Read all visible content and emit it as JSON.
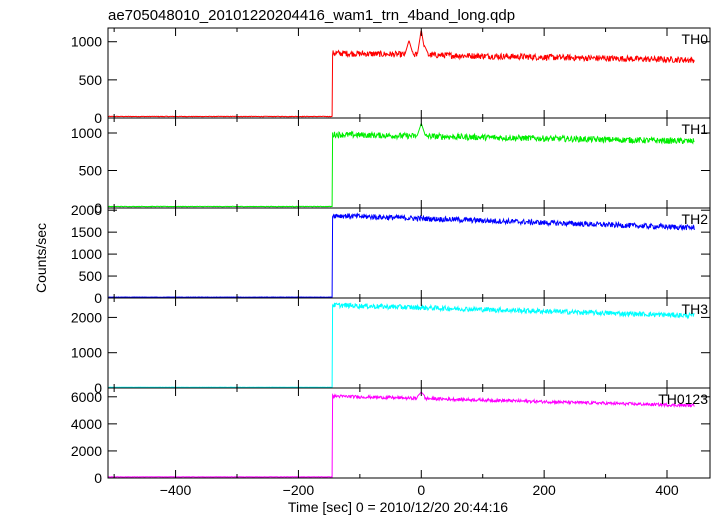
{
  "chart_data": {
    "type": "line",
    "title": "ae705048010_20101220204416_wam1_trn_4band_long.qdp",
    "xlabel": "Time [sec] 0 = 2010/12/20 20:44:16",
    "ylabel": "Counts/sec",
    "xlim": [
      -510,
      470
    ],
    "xticks": [
      -400,
      -200,
      0,
      200,
      400
    ],
    "xtick_labels": [
      "−400",
      "−200",
      "0",
      "200",
      "400"
    ],
    "panels": [
      {
        "name": "TH0",
        "color": "#ff0000",
        "ylim": [
          0,
          1180
        ],
        "yticks": [
          0,
          500,
          1000
        ],
        "ytick_labels": [
          "0",
          "500",
          "1000"
        ],
        "pre_level": 20,
        "post_start": 850,
        "post_end": 760,
        "noise": 40,
        "spikes": [
          [
            -20,
            1020
          ],
          [
            0,
            1160
          ],
          [
            5,
            950
          ]
        ]
      },
      {
        "name": "TH1",
        "color": "#00ee00",
        "ylim": [
          0,
          1200
        ],
        "yticks": [
          0,
          500,
          1000
        ],
        "ytick_labels": [
          "0",
          "500",
          "1000"
        ],
        "pre_level": 20,
        "post_start": 980,
        "post_end": 890,
        "noise": 40,
        "spikes": [
          [
            0,
            1130
          ]
        ]
      },
      {
        "name": "TH2",
        "color": "#0000ff",
        "ylim": [
          0,
          2050
        ],
        "yticks": [
          0,
          500,
          1000,
          1500,
          2000
        ],
        "ytick_labels": [
          "0",
          "500",
          "1000",
          "1500",
          "2000"
        ],
        "pre_level": 20,
        "post_start": 1880,
        "post_end": 1600,
        "noise": 60,
        "spikes": []
      },
      {
        "name": "TH3",
        "color": "#00ffff",
        "ylim": [
          0,
          2550
        ],
        "yticks": [
          0,
          1000,
          2000
        ],
        "ytick_labels": [
          "0",
          "1000",
          "2000"
        ],
        "pre_level": 20,
        "post_start": 2350,
        "post_end": 2050,
        "noise": 70,
        "spikes": []
      },
      {
        "name": "TH0123",
        "color": "#ff00ff",
        "ylim": [
          0,
          6650
        ],
        "yticks": [
          0,
          2000,
          4000,
          6000
        ],
        "ytick_labels": [
          "0",
          "2000",
          "4000",
          "6000"
        ],
        "pre_level": 80,
        "post_start": 6050,
        "post_end": 5350,
        "noise": 110,
        "spikes": [
          [
            0,
            6350
          ]
        ]
      }
    ],
    "onset_time": -145,
    "data_range": [
      -510,
      445
    ],
    "grid": false
  }
}
